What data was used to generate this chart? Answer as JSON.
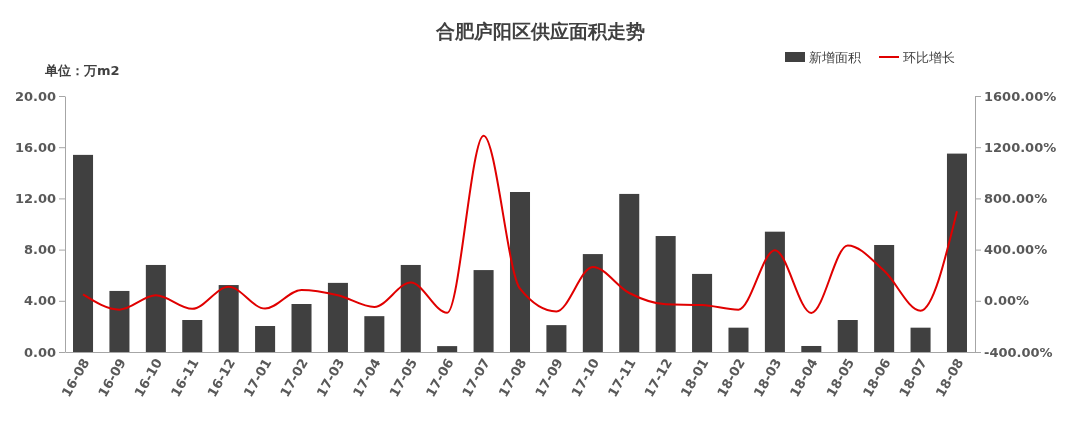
{
  "chart_data": {
    "type": "bar",
    "title": "合肥庐阳区供应面积走势",
    "ylabel": "单位：万m2",
    "categories": [
      "16-08",
      "16-09",
      "16-10",
      "16-11",
      "16-12",
      "17-01",
      "17-02",
      "17-03",
      "17-04",
      "17-05",
      "17-06",
      "17-07",
      "17-08",
      "17-09",
      "17-10",
      "17-11",
      "17-12",
      "18-01",
      "18-02",
      "18-03",
      "18-04",
      "18-05",
      "18-06",
      "18-07",
      "18-08"
    ],
    "series": [
      {
        "name": "新增面积",
        "color": "#404040",
        "values": [
          15.4,
          4.77,
          6.8,
          2.5,
          5.23,
          2.03,
          3.75,
          5.4,
          2.8,
          6.8,
          0.46,
          6.4,
          12.5,
          2.1,
          7.65,
          12.35,
          9.06,
          6.1,
          1.9,
          9.4,
          0.47,
          2.5,
          8.36,
          1.9,
          15.5
        ]
      },
      {
        "name": "环比增长",
        "type": "line",
        "axis": "y2",
        "color": "#e00000",
        "values": [
          50,
          -69,
          43,
          -63,
          109,
          -61,
          85,
          44,
          -48,
          143,
          -94,
          1290,
          95,
          -83,
          264,
          61,
          -27,
          -33,
          -69,
          395,
          -95,
          432,
          234,
          -77,
          700
        ]
      }
    ],
    "ylim": [
      0,
      20
    ],
    "yticks": [
      {
        "value": 0,
        "label": "0.00"
      },
      {
        "value": 4,
        "label": "4.00"
      },
      {
        "value": 8,
        "label": "8.00"
      },
      {
        "value": 12,
        "label": "12.00"
      },
      {
        "value": 16,
        "label": "16.00"
      },
      {
        "value": 20,
        "label": "20.00"
      }
    ],
    "y2lim": [
      -400,
      1600
    ],
    "y2ticks": [
      {
        "value": -400,
        "label": "-400.00%"
      },
      {
        "value": 0,
        "label": "0.00%"
      },
      {
        "value": 400,
        "label": "400.00%"
      },
      {
        "value": 800,
        "label": "800.00%"
      },
      {
        "value": 1200,
        "label": "1200.00%"
      },
      {
        "value": 1600,
        "label": "1600.00%"
      }
    ],
    "legend": "top right",
    "grid": false
  }
}
